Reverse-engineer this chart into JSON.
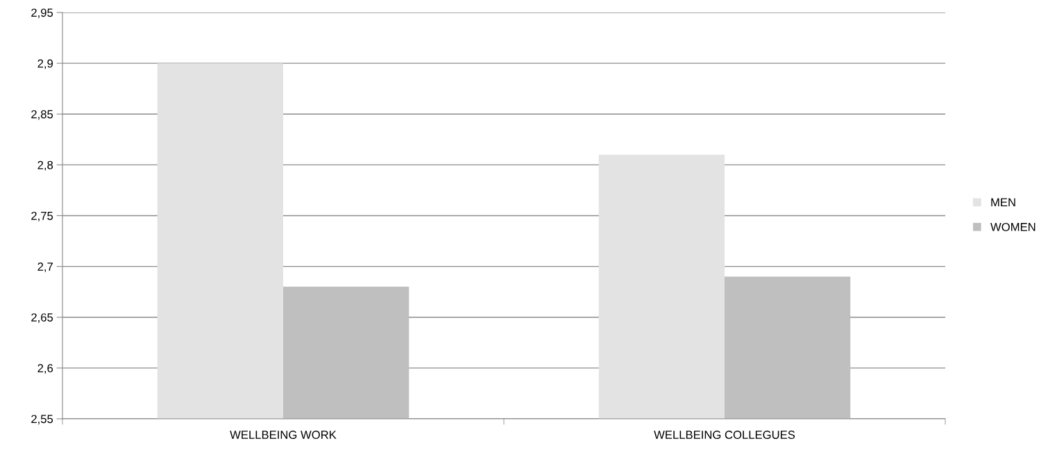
{
  "chart_data": {
    "type": "bar",
    "categories": [
      "WELLBEING WORK",
      "WELLBEING COLLEGUES"
    ],
    "series": [
      {
        "name": "MEN",
        "color": "#e3e3e3",
        "values": [
          2.9,
          2.81
        ]
      },
      {
        "name": "WOMEN",
        "color": "#bfbfbf",
        "values": [
          2.68,
          2.69
        ]
      }
    ],
    "ylim": [
      2.55,
      2.95
    ],
    "yticks": [
      {
        "value": 2.55,
        "label": "2,55"
      },
      {
        "value": 2.6,
        "label": "2,6"
      },
      {
        "value": 2.65,
        "label": "2,65"
      },
      {
        "value": 2.7,
        "label": "2,7"
      },
      {
        "value": 2.75,
        "label": "2,75"
      },
      {
        "value": 2.8,
        "label": "2,8"
      },
      {
        "value": 2.85,
        "label": "2,85"
      },
      {
        "value": 2.9,
        "label": "2,9"
      },
      {
        "value": 2.95,
        "label": "2,95"
      }
    ],
    "grid": "y",
    "legend": "right"
  }
}
